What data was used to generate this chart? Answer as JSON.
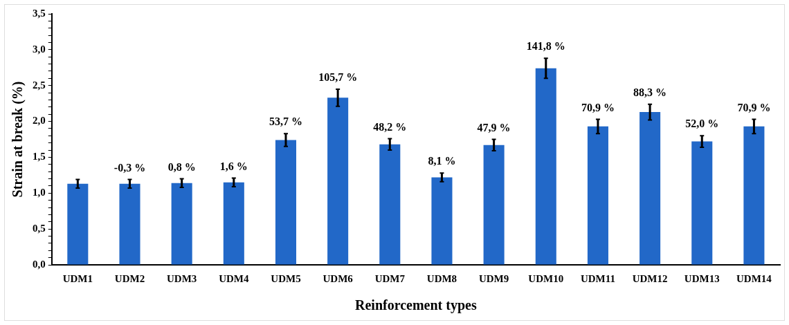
{
  "chart_data": {
    "type": "bar",
    "xlabel": "Reinforcement types",
    "ylabel": "Strain at break (%)",
    "categories": [
      "UDM1",
      "UDM2",
      "UDM3",
      "UDM4",
      "UDM5",
      "UDM6",
      "UDM7",
      "UDM8",
      "UDM9",
      "UDM10",
      "UDM11",
      "UDM12",
      "UDM13",
      "UDM14"
    ],
    "values": [
      1.13,
      1.13,
      1.14,
      1.15,
      1.74,
      2.33,
      1.68,
      1.22,
      1.67,
      2.74,
      1.93,
      2.13,
      1.72,
      1.93
    ],
    "errors": [
      0.06,
      0.06,
      0.06,
      0.06,
      0.09,
      0.12,
      0.08,
      0.06,
      0.08,
      0.14,
      0.1,
      0.11,
      0.08,
      0.1
    ],
    "annotations": [
      {
        "text": "-0,3 %",
        "x": "UDM2",
        "y": 1.19
      },
      {
        "text": "0,8 %",
        "x": "UDM3",
        "y": 1.2
      },
      {
        "text": "1,6 %",
        "x": "UDM4",
        "y": 1.21
      },
      {
        "text": "53,7 %",
        "x": "UDM5",
        "y": 1.83
      },
      {
        "text": "105,7 %",
        "x": "UDM6",
        "y": 2.45
      },
      {
        "text": "48,2 %",
        "x": "UDM7",
        "y": 1.76
      },
      {
        "text": "8,1 %",
        "x": "UDM8",
        "y": 1.28
      },
      {
        "text": "47,9 %",
        "x": "UDM9",
        "y": 1.75
      },
      {
        "text": "141,8 %",
        "x": "UDM10",
        "y": 2.88
      },
      {
        "text": "70,9 %",
        "x": "UDM11",
        "y": 2.03
      },
      {
        "text": "88,3 %",
        "x": "UDM12",
        "y": 2.24
      },
      {
        "text": "52,0 %",
        "x": "UDM13",
        "y": 1.8
      },
      {
        "text": "70,9 %",
        "x": "UDM14",
        "y": 2.03
      }
    ],
    "color": "#2268c8",
    "ylim": [
      0,
      3.5
    ],
    "yticks": [
      {
        "value": 0,
        "label": "0,0"
      },
      {
        "value": 0.1,
        "label": null
      },
      {
        "value": 0.2,
        "label": null
      },
      {
        "value": 0.3,
        "label": null
      },
      {
        "value": 0.4,
        "label": null
      },
      {
        "value": 0.5,
        "label": "0,5"
      },
      {
        "value": 0.6,
        "label": null
      },
      {
        "value": 0.7,
        "label": null
      },
      {
        "value": 0.8,
        "label": null
      },
      {
        "value": 0.9,
        "label": null
      },
      {
        "value": 1,
        "label": "1,0"
      },
      {
        "value": 1.1,
        "label": null
      },
      {
        "value": 1.2,
        "label": null
      },
      {
        "value": 1.3,
        "label": null
      },
      {
        "value": 1.4,
        "label": null
      },
      {
        "value": 1.5,
        "label": "1,5"
      },
      {
        "value": 1.6,
        "label": null
      },
      {
        "value": 1.7,
        "label": null
      },
      {
        "value": 1.8,
        "label": null
      },
      {
        "value": 1.9,
        "label": null
      },
      {
        "value": 2,
        "label": "2,0"
      },
      {
        "value": 2.1,
        "label": null
      },
      {
        "value": 2.2,
        "label": null
      },
      {
        "value": 2.3,
        "label": null
      },
      {
        "value": 2.4,
        "label": null
      },
      {
        "value": 2.5,
        "label": "2,5"
      },
      {
        "value": 2.6,
        "label": null
      },
      {
        "value": 2.7,
        "label": null
      },
      {
        "value": 2.8,
        "label": null
      },
      {
        "value": 2.9,
        "label": null
      },
      {
        "value": 3,
        "label": "3,0"
      },
      {
        "value": 3.1,
        "label": null
      },
      {
        "value": 3.2,
        "label": null
      },
      {
        "value": 3.3,
        "label": null
      },
      {
        "value": 3.4,
        "label": null
      },
      {
        "value": 3.5,
        "label": "3,5"
      }
    ],
    "grid": false,
    "legend": false
  }
}
